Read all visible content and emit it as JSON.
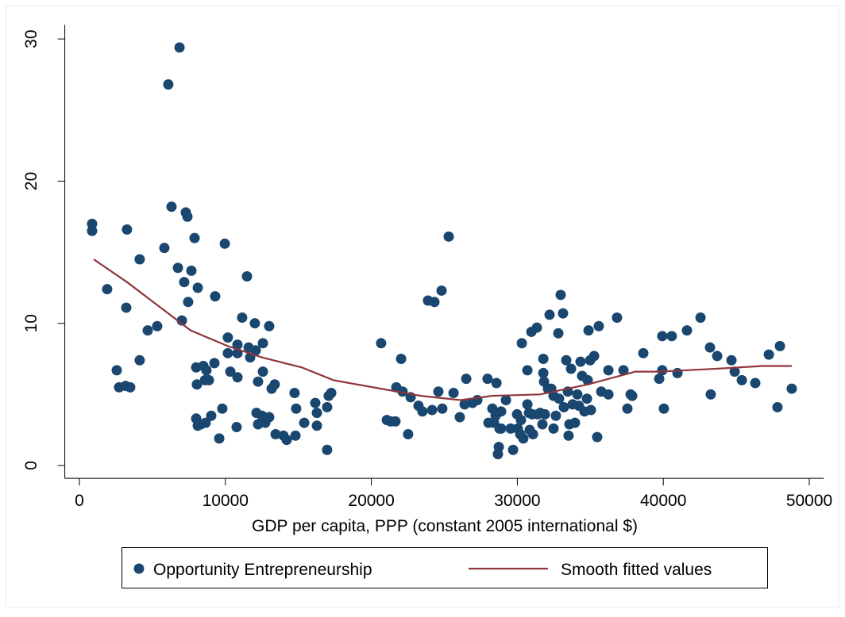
{
  "chart_data": {
    "type": "scatter",
    "xlabel": "GDP per capita, PPP (constant 2005 international $)",
    "xlim": [
      -1000,
      51000
    ],
    "ylim": [
      -0.9,
      31
    ],
    "xticks": [
      0,
      10000,
      20000,
      30000,
      40000,
      50000
    ],
    "yticks": [
      0,
      10,
      20,
      30
    ],
    "legend": "bottom",
    "series": [
      {
        "name": "Opportunity Entrepreneurship",
        "type": "scatter",
        "color": "#1a476f",
        "x": [
          870,
          870,
          1900,
          2560,
          2720,
          3160,
          3260,
          3210,
          3480,
          4130,
          4130,
          4680,
          5330,
          5820,
          6090,
          6860,
          6310,
          6750,
          7020,
          7180,
          7290,
          7400,
          7450,
          7670,
          7890,
          8110,
          8000,
          8000,
          8050,
          8110,
          8320,
          8490,
          8600,
          8700,
          8870,
          8650,
          9030,
          9250,
          9300,
          9580,
          9790,
          9960,
          10170,
          10170,
          10340,
          10770,
          10830,
          10830,
          10830,
          11150,
          11480,
          11590,
          11700,
          12020,
          12080,
          12130,
          12240,
          12240,
          12510,
          12570,
          12570,
          12730,
          13000,
          13000,
          13170,
          13380,
          13440,
          13980,
          14200,
          14740,
          14850,
          14800,
          15400,
          16160,
          16270,
          16270,
          16970,
          16970,
          17080,
          17250,
          20670,
          21060,
          21330,
          21650,
          21710,
          22040,
          22140,
          22520,
          22690,
          23230,
          23500,
          23880,
          24160,
          24320,
          24590,
          24810,
          24860,
          25300,
          25630,
          26060,
          26390,
          26500,
          26930,
          27260,
          27960,
          28020,
          28290,
          28400,
          28510,
          28570,
          28670,
          28730,
          28780,
          28890,
          28890,
          29220,
          29540,
          29710,
          29980,
          30030,
          30200,
          30250,
          30310,
          30410,
          30690,
          30690,
          30800,
          30850,
          30960,
          31010,
          31070,
          31340,
          31390,
          31560,
          31720,
          31780,
          31780,
          31830,
          31890,
          32100,
          32210,
          32320,
          32480,
          32480,
          32640,
          32810,
          32860,
          32970,
          33130,
          33190,
          33350,
          33460,
          33510,
          33570,
          33680,
          33790,
          33950,
          34110,
          34220,
          34330,
          34440,
          34600,
          34770,
          34820,
          34880,
          34990,
          35040,
          35260,
          35470,
          35580,
          35750,
          36240,
          36240,
          36830,
          37270,
          37540,
          37760,
          37870,
          38630,
          39720,
          39930,
          39930,
          40040,
          40580,
          40970,
          41620,
          42550,
          43200,
          43250,
          43690,
          44670,
          44890,
          45380,
          46300,
          47230,
          47820,
          47990,
          48800
        ],
        "values": [
          17.0,
          16.5,
          12.4,
          6.7,
          5.5,
          5.6,
          16.6,
          11.1,
          5.5,
          7.4,
          14.5,
          9.5,
          9.8,
          15.3,
          26.8,
          29.4,
          18.2,
          13.9,
          10.2,
          12.9,
          17.8,
          17.5,
          11.5,
          13.7,
          16.0,
          12.5,
          6.9,
          3.3,
          5.7,
          2.8,
          2.9,
          7.0,
          6.0,
          6.7,
          6.0,
          3.0,
          3.5,
          7.2,
          11.9,
          1.9,
          4.0,
          15.6,
          9.0,
          7.9,
          6.6,
          2.7,
          6.2,
          8.5,
          7.9,
          10.4,
          13.3,
          8.3,
          7.6,
          10.0,
          8.1,
          3.7,
          5.9,
          2.9,
          3.5,
          8.6,
          6.6,
          3.0,
          3.4,
          9.8,
          5.4,
          5.7,
          2.2,
          2.1,
          1.8,
          5.1,
          4.0,
          2.1,
          3.0,
          4.4,
          3.7,
          2.8,
          1.1,
          4.1,
          4.9,
          5.1,
          8.6,
          3.2,
          3.1,
          3.1,
          5.5,
          7.5,
          5.2,
          2.2,
          4.8,
          4.2,
          3.8,
          11.6,
          3.9,
          11.5,
          5.2,
          12.3,
          4.0,
          16.1,
          5.1,
          3.4,
          4.3,
          6.1,
          4.4,
          4.6,
          6.1,
          3.0,
          4.0,
          3.0,
          3.5,
          5.8,
          0.8,
          1.3,
          2.6,
          3.8,
          2.6,
          4.6,
          2.6,
          1.1,
          3.6,
          2.6,
          2.2,
          3.2,
          8.6,
          1.9,
          6.7,
          4.3,
          3.7,
          2.5,
          9.4,
          3.6,
          2.2,
          9.7,
          3.6,
          3.7,
          2.9,
          7.5,
          6.5,
          5.9,
          3.6,
          5.4,
          10.6,
          5.4,
          4.9,
          2.6,
          3.5,
          9.3,
          4.7,
          12.0,
          10.7,
          4.1,
          7.4,
          5.2,
          2.1,
          2.9,
          6.8,
          4.3,
          3.0,
          5.0,
          4.2,
          7.3,
          6.3,
          3.8,
          4.7,
          6.0,
          9.5,
          7.4,
          3.9,
          7.7,
          2.0,
          9.8,
          5.2,
          6.7,
          5.0,
          10.4,
          6.7,
          4.0,
          5.0,
          4.9,
          7.9,
          6.1,
          9.1,
          6.7,
          4.0,
          9.1,
          6.5,
          9.5,
          10.4,
          8.3,
          5.0,
          7.7,
          7.4,
          6.6,
          6.0,
          5.8,
          7.8,
          4.1,
          8.4,
          5.4
        ]
      },
      {
        "name": "Smooth fitted values",
        "type": "line",
        "color": "#90353b",
        "x": [
          980,
          3260,
          5440,
          7620,
          10170,
          12510,
          15230,
          17410,
          20130,
          23390,
          26110,
          28290,
          31560,
          34820,
          38080,
          39720,
          43530,
          46790,
          48800
        ],
        "values": [
          14.5,
          12.9,
          11.2,
          9.5,
          8.4,
          7.6,
          6.9,
          6.0,
          5.5,
          4.9,
          4.6,
          4.9,
          5.0,
          5.7,
          6.6,
          6.6,
          6.8,
          7.0,
          7.0
        ]
      }
    ]
  }
}
